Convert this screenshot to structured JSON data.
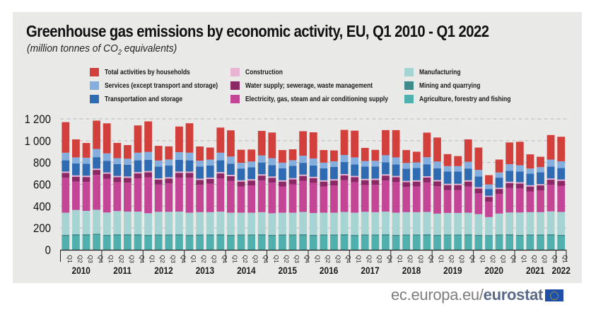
{
  "chart_data": {
    "type": "bar",
    "stacked": true,
    "title": "Greenhouse gas emissions by economic activity, EU, Q1 2010 -  Q1 2022",
    "subtitle_prefix": "(million tonnes of CO",
    "subtitle_sub": "2",
    "subtitle_suffix": " equivalents)",
    "xlabel": "",
    "ylabel": "",
    "ylim": [
      0,
      1200
    ],
    "yticks": [
      0,
      200,
      400,
      600,
      800,
      1000,
      1200
    ],
    "ytick_labels": [
      "0",
      "200",
      "400",
      "600",
      "800",
      "1 000",
      "1 200"
    ],
    "grid": "horizontal-dashed",
    "legend_position": "top",
    "quarter_labels": [
      "Q1",
      "Q2",
      "Q3",
      "Q4"
    ],
    "years": [
      "2010",
      "2011",
      "2012",
      "2013",
      "2014",
      "2015",
      "2016",
      "2017",
      "2018",
      "2019",
      "2020",
      "2021",
      "2022"
    ],
    "categories": [
      "2010Q1",
      "2010Q2",
      "2010Q3",
      "2010Q4",
      "2011Q1",
      "2011Q2",
      "2011Q3",
      "2011Q4",
      "2012Q1",
      "2012Q2",
      "2012Q3",
      "2012Q4",
      "2013Q1",
      "2013Q2",
      "2013Q3",
      "2013Q4",
      "2014Q1",
      "2014Q2",
      "2014Q3",
      "2014Q4",
      "2015Q1",
      "2015Q2",
      "2015Q3",
      "2015Q4",
      "2016Q1",
      "2016Q2",
      "2016Q3",
      "2016Q4",
      "2017Q1",
      "2017Q2",
      "2017Q3",
      "2017Q4",
      "2018Q1",
      "2018Q2",
      "2018Q3",
      "2018Q4",
      "2019Q1",
      "2019Q2",
      "2019Q3",
      "2019Q4",
      "2020Q1",
      "2020Q2",
      "2020Q3",
      "2020Q4",
      "2021Q1",
      "2021Q2",
      "2021Q3",
      "2021Q4",
      "2022Q1"
    ],
    "series": [
      {
        "name": "Agriculture, forestry and fishing",
        "color": "#4fb0ae",
        "values": [
          125,
          130,
          130,
          135,
          125,
          130,
          130,
          130,
          125,
          128,
          128,
          130,
          125,
          128,
          128,
          130,
          125,
          128,
          128,
          130,
          125,
          128,
          128,
          130,
          125,
          128,
          128,
          130,
          125,
          128,
          128,
          130,
          125,
          128,
          128,
          130,
          125,
          128,
          128,
          130,
          125,
          125,
          128,
          130,
          125,
          128,
          128,
          130,
          125
        ]
      },
      {
        "name": "Mining and quarrying",
        "color": "#3e8a8c",
        "values": [
          12,
          12,
          12,
          12,
          12,
          12,
          12,
          12,
          12,
          12,
          12,
          12,
          12,
          12,
          12,
          12,
          12,
          12,
          12,
          12,
          12,
          12,
          12,
          12,
          12,
          12,
          12,
          12,
          12,
          12,
          12,
          12,
          12,
          12,
          12,
          12,
          12,
          12,
          12,
          12,
          12,
          10,
          12,
          12,
          12,
          12,
          12,
          12,
          12
        ]
      },
      {
        "name": "Manufacturing",
        "color": "#a6d4d3",
        "values": [
          203,
          223,
          215,
          220,
          205,
          213,
          208,
          208,
          198,
          208,
          208,
          208,
          203,
          205,
          205,
          208,
          203,
          200,
          200,
          203,
          198,
          200,
          200,
          205,
          200,
          200,
          200,
          205,
          203,
          208,
          205,
          208,
          203,
          205,
          205,
          205,
          195,
          198,
          198,
          198,
          190,
          165,
          192,
          200,
          205,
          205,
          205,
          210,
          210
        ]
      },
      {
        "name": "Electricity, gas, steam and air conditioning supply",
        "color": "#c44596",
        "values": [
          320,
          260,
          265,
          320,
          310,
          265,
          265,
          305,
          330,
          250,
          260,
          310,
          320,
          250,
          260,
          305,
          290,
          240,
          250,
          290,
          280,
          240,
          260,
          285,
          275,
          240,
          250,
          290,
          280,
          245,
          250,
          285,
          280,
          230,
          235,
          270,
          250,
          210,
          210,
          240,
          190,
          140,
          180,
          225,
          220,
          190,
          200,
          245,
          240
        ]
      },
      {
        "name": "Water supply; sewerage, waste management",
        "color": "#8c2866",
        "values": [
          45,
          45,
          45,
          45,
          45,
          45,
          45,
          45,
          45,
          45,
          45,
          45,
          45,
          45,
          45,
          45,
          45,
          45,
          45,
          45,
          45,
          45,
          45,
          45,
          45,
          45,
          45,
          45,
          45,
          45,
          45,
          45,
          45,
          45,
          45,
          45,
          45,
          45,
          45,
          45,
          45,
          45,
          45,
          45,
          45,
          45,
          45,
          45,
          45
        ]
      },
      {
        "name": "Construction",
        "color": "#e9b3d2",
        "values": [
          12,
          12,
          12,
          12,
          12,
          12,
          12,
          12,
          12,
          12,
          12,
          12,
          12,
          12,
          12,
          12,
          12,
          12,
          12,
          12,
          12,
          12,
          12,
          12,
          12,
          12,
          12,
          12,
          12,
          12,
          12,
          12,
          12,
          12,
          12,
          12,
          12,
          12,
          12,
          12,
          12,
          10,
          12,
          12,
          12,
          12,
          12,
          12,
          12
        ]
      },
      {
        "name": "Transportation and storage",
        "color": "#2f6bb3",
        "values": [
          103,
          110,
          110,
          105,
          105,
          108,
          108,
          108,
          103,
          108,
          108,
          108,
          103,
          110,
          110,
          108,
          103,
          108,
          110,
          108,
          103,
          110,
          112,
          108,
          103,
          110,
          112,
          110,
          105,
          112,
          112,
          110,
          105,
          112,
          112,
          110,
          108,
          112,
          112,
          108,
          98,
          62,
          92,
          100,
          98,
          105,
          108,
          108,
          105
        ]
      },
      {
        "name": "Services (except transport and storage)",
        "color": "#84aede",
        "values": [
          70,
          55,
          55,
          75,
          70,
          55,
          55,
          70,
          72,
          55,
          55,
          70,
          70,
          55,
          55,
          70,
          65,
          52,
          52,
          65,
          65,
          52,
          52,
          65,
          65,
          52,
          52,
          65,
          65,
          52,
          52,
          65,
          65,
          52,
          52,
          65,
          62,
          50,
          50,
          62,
          60,
          42,
          48,
          60,
          58,
          48,
          48,
          65,
          62
        ]
      },
      {
        "name": "Total activities by households",
        "color": "#d33f3b",
        "values": [
          280,
          165,
          135,
          260,
          275,
          140,
          125,
          250,
          280,
          135,
          120,
          235,
          270,
          130,
          110,
          230,
          240,
          120,
          110,
          225,
          235,
          115,
          100,
          225,
          240,
          115,
          100,
          230,
          245,
          120,
          100,
          230,
          250,
          118,
          98,
          225,
          220,
          110,
          92,
          205,
          205,
          85,
          118,
          200,
          215,
          130,
          95,
          225,
          225
        ]
      }
    ]
  },
  "footer": {
    "site": "ec.europa.eu/",
    "brand": "eurostat",
    "flag_icon": "eu-flag-icon"
  }
}
